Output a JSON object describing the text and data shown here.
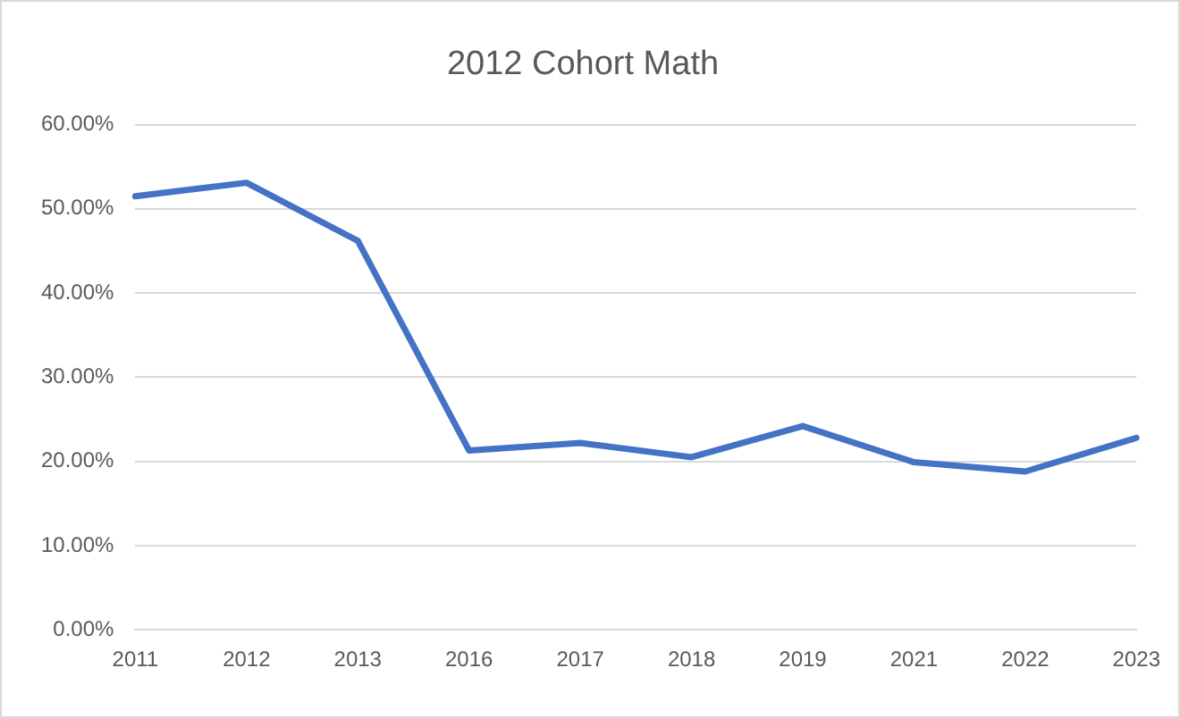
{
  "chart_data": {
    "type": "line",
    "title": "2012 Cohort Math",
    "categories": [
      "2011",
      "2012",
      "2013",
      "2016",
      "2017",
      "2018",
      "2019",
      "2021",
      "2022",
      "2023"
    ],
    "values": [
      51.5,
      53.1,
      46.2,
      21.3,
      22.2,
      20.5,
      24.2,
      19.9,
      18.8,
      22.8
    ],
    "color": "#4472c4",
    "ylim": [
      0,
      60
    ],
    "yticks": [
      {
        "value": 0,
        "label": "0.00%"
      },
      {
        "value": 10,
        "label": "10.00%"
      },
      {
        "value": 20,
        "label": "20.00%"
      },
      {
        "value": 30,
        "label": "30.00%"
      },
      {
        "value": 40,
        "label": "40.00%"
      },
      {
        "value": 50,
        "label": "50.00%"
      },
      {
        "value": 60,
        "label": "60.00%"
      }
    ],
    "grid": "y",
    "legend": false,
    "marker": "none",
    "line_style": "solid"
  }
}
